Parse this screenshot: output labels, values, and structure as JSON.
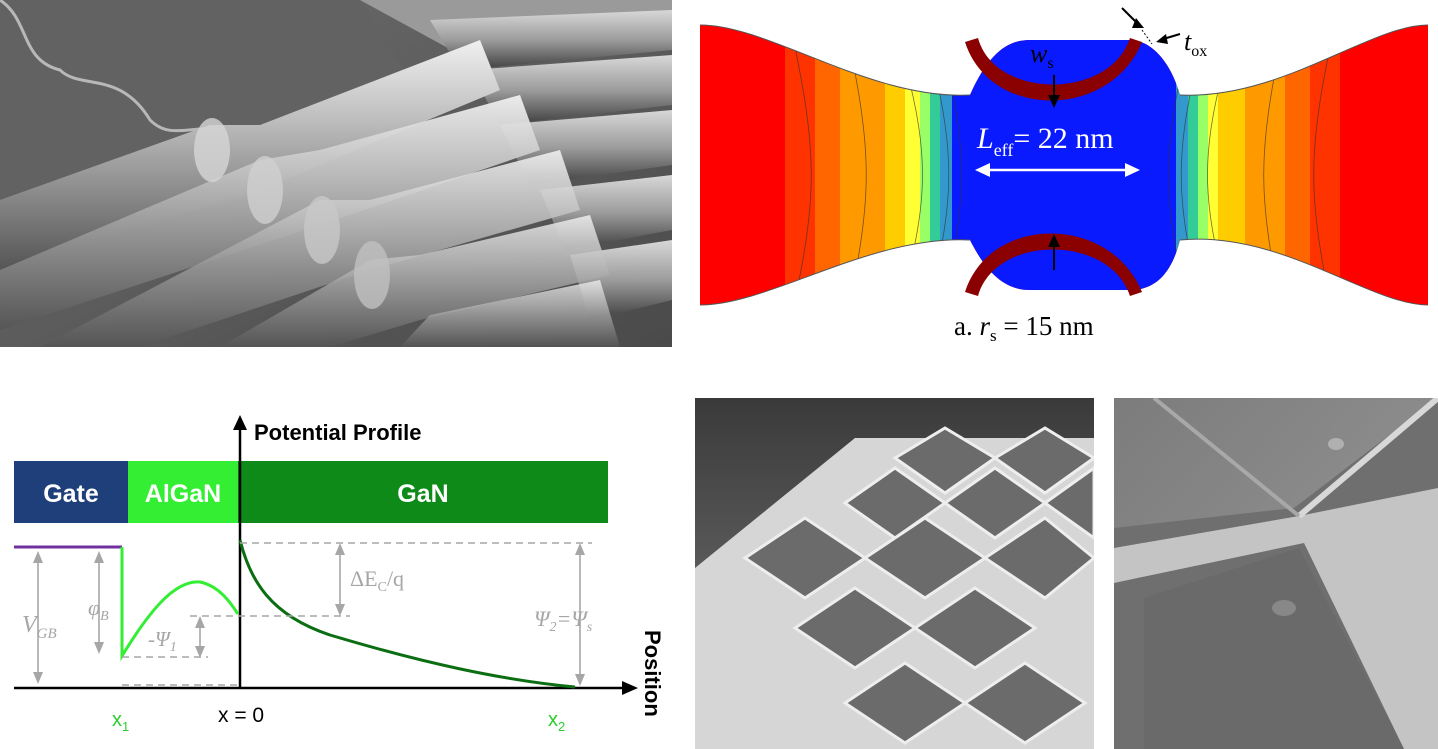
{
  "simulation": {
    "width_label": "w",
    "width_sub": "s",
    "oxide_label": "t",
    "oxide_sub": "ox",
    "length_label": "L",
    "length_sub": "eff",
    "length_value": "= 22 nm",
    "caption_prefix": "a. ",
    "caption_var": "r",
    "caption_sub": "s",
    "caption_value": " = 15 nm"
  },
  "band_diagram": {
    "axis_title": "Potential Profile",
    "x_axis_label": "Position",
    "layers": [
      "Gate",
      "AlGaN",
      "GaN"
    ],
    "labels": {
      "vgb": "V",
      "vgb_sub": "GB",
      "phib": "φ",
      "phib_sub": "B",
      "psi1": "-Ψ",
      "psi1_sub": "1",
      "delta_ec": "ΔE",
      "delta_ec_sub": "C",
      "delta_ec_tail": "/q",
      "psi2": "Ψ",
      "psi2_sub": "2",
      "psi2_eq": "=Ψ",
      "psi2_eq_sub": "s",
      "x1": "x",
      "x1_sub": "1",
      "x0": "x = 0",
      "x2": "x",
      "x2_sub": "2"
    },
    "colors": {
      "gate": "#1f3f7a",
      "algan": "#33ee33",
      "gan": "#0e8a18",
      "gate_line": "#7030a0",
      "annotation": "#a6a6a6",
      "x_label": "#2ecc2e"
    }
  }
}
